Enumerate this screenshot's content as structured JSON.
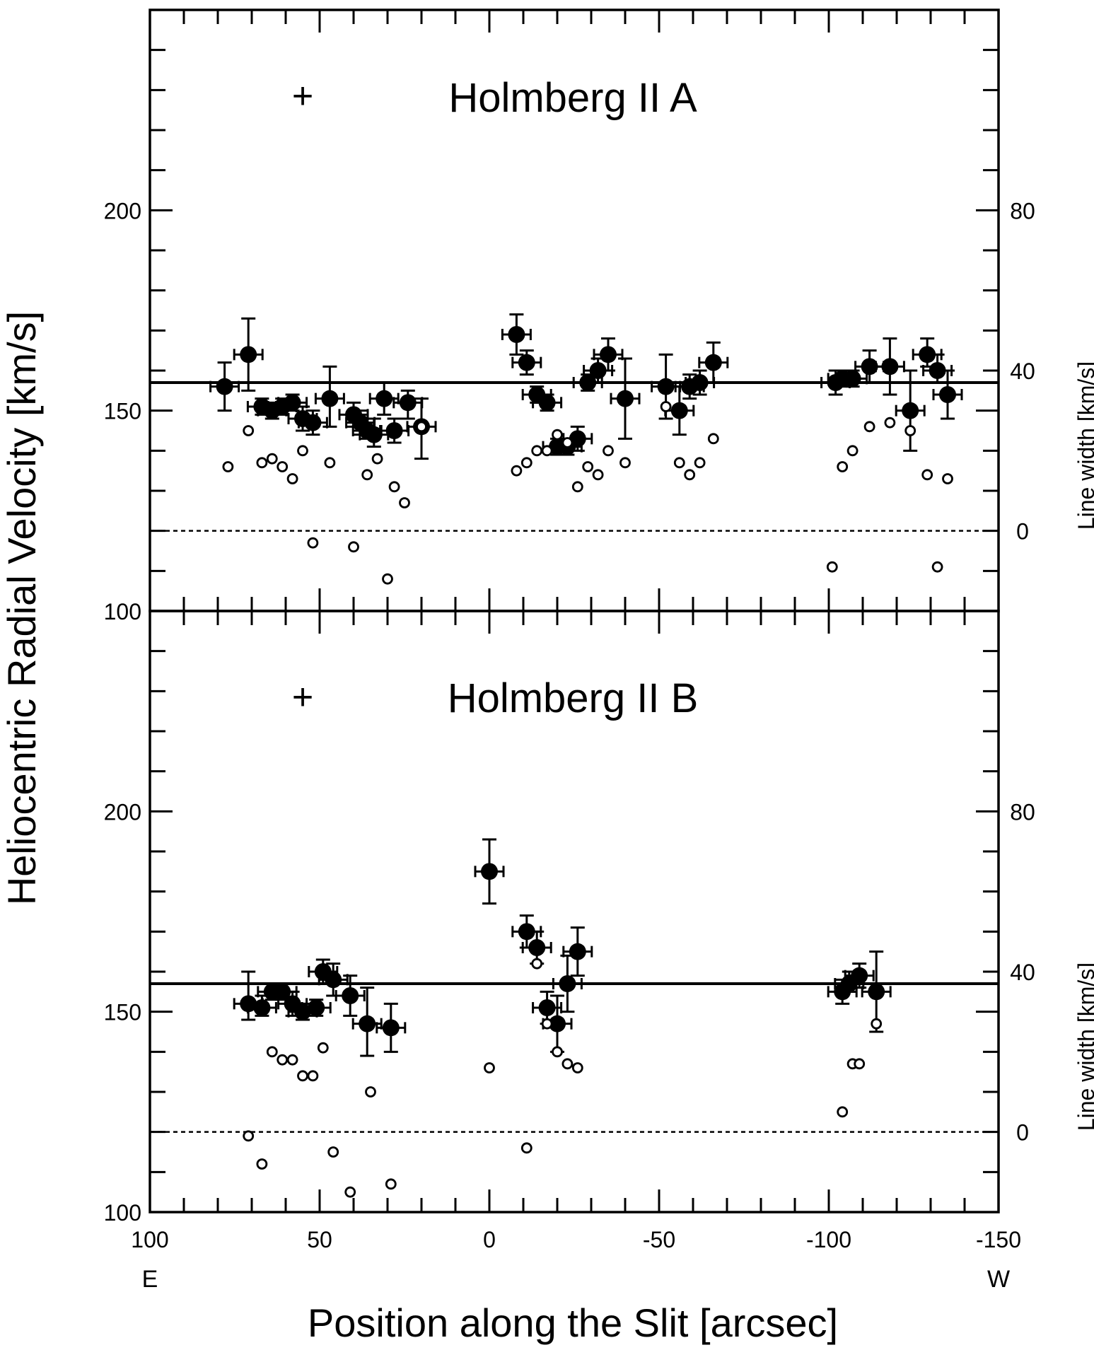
{
  "figure": {
    "y_axis_label": "Heliocentric Radial Velocity [km/s]",
    "x_axis_label": "Position along the Slit [arcsec]",
    "right_axis_label": "Line width [km/s]",
    "x_end_labels": {
      "left": "E",
      "right": "W"
    },
    "center_marker": "+"
  },
  "chart_data": [
    {
      "type": "scatter",
      "title": "Holmberg II A",
      "xlabel": "Position along the Slit [arcsec]",
      "ylabel": "Heliocentric Radial Velocity [km/s]",
      "y2label": "Line width [km/s]",
      "xlim": [
        100,
        -150
      ],
      "ylim": [
        100,
        250
      ],
      "y2_range": [
        -20,
        130
      ],
      "x_ticks": [
        "100",
        "50",
        "0",
        "-50",
        "-100",
        "-150"
      ],
      "y_ticks": [
        "100",
        "150",
        "200"
      ],
      "y2_ticks": [
        "0",
        "40",
        "80"
      ],
      "center_marker_x": 55,
      "mean_velocity": 157,
      "zero_line_width": 0,
      "series": [
        {
          "marker": "filled-circle",
          "points": [
            {
              "x": 78,
              "y": 156,
              "ylo": 150,
              "yhi": 162
            },
            {
              "x": 71,
              "y": 164,
              "ylo": 155,
              "yhi": 173
            },
            {
              "x": 67,
              "y": 151,
              "ylo": 149,
              "yhi": 153
            },
            {
              "x": 64,
              "y": 150,
              "ylo": 148,
              "yhi": 152
            },
            {
              "x": 61,
              "y": 151,
              "ylo": 149,
              "yhi": 153
            },
            {
              "x": 58,
              "y": 152,
              "ylo": 150,
              "yhi": 154
            },
            {
              "x": 55,
              "y": 148,
              "ylo": 145,
              "yhi": 151
            },
            {
              "x": 52,
              "y": 147,
              "ylo": 144,
              "yhi": 150
            },
            {
              "x": 47,
              "y": 153,
              "ylo": 146,
              "yhi": 161
            },
            {
              "x": 40,
              "y": 149,
              "ylo": 146,
              "yhi": 152
            },
            {
              "x": 38,
              "y": 147,
              "ylo": 144,
              "yhi": 150
            },
            {
              "x": 36,
              "y": 145,
              "ylo": 143,
              "yhi": 148
            },
            {
              "x": 34,
              "y": 144,
              "ylo": 141,
              "yhi": 148
            },
            {
              "x": 31,
              "y": 153,
              "ylo": 149,
              "yhi": 157
            },
            {
              "x": 28,
              "y": 145,
              "ylo": 142,
              "yhi": 148
            },
            {
              "x": 24,
              "y": 152,
              "ylo": 148,
              "yhi": 155
            },
            {
              "x": 20,
              "y": 146,
              "ylo": 138,
              "yhi": 153
            },
            {
              "x": -8,
              "y": 169,
              "ylo": 164,
              "yhi": 174
            },
            {
              "x": -11,
              "y": 162,
              "ylo": 159,
              "yhi": 165
            },
            {
              "x": -14,
              "y": 154,
              "ylo": 152,
              "yhi": 156
            },
            {
              "x": -17,
              "y": 152,
              "ylo": 150,
              "yhi": 154
            },
            {
              "x": -20,
              "y": 141,
              "ylo": 139,
              "yhi": 143
            },
            {
              "x": -23,
              "y": 141,
              "ylo": 139,
              "yhi": 143
            },
            {
              "x": -26,
              "y": 143,
              "ylo": 140,
              "yhi": 146
            },
            {
              "x": -29,
              "y": 157,
              "ylo": 155,
              "yhi": 159
            },
            {
              "x": -32,
              "y": 160,
              "ylo": 157,
              "yhi": 163
            },
            {
              "x": -35,
              "y": 164,
              "ylo": 160,
              "yhi": 168
            },
            {
              "x": -40,
              "y": 153,
              "ylo": 143,
              "yhi": 163
            },
            {
              "x": -52,
              "y": 156,
              "ylo": 148,
              "yhi": 164
            },
            {
              "x": -56,
              "y": 150,
              "ylo": 144,
              "yhi": 156
            },
            {
              "x": -59,
              "y": 156,
              "ylo": 153,
              "yhi": 159
            },
            {
              "x": -62,
              "y": 157,
              "ylo": 154,
              "yhi": 160
            },
            {
              "x": -66,
              "y": 162,
              "ylo": 157,
              "yhi": 167
            },
            {
              "x": -102,
              "y": 157,
              "ylo": 154,
              "yhi": 160
            },
            {
              "x": -104,
              "y": 158,
              "ylo": 156,
              "yhi": 160
            },
            {
              "x": -107,
              "y": 158,
              "ylo": 156,
              "yhi": 160
            },
            {
              "x": -112,
              "y": 161,
              "ylo": 157,
              "yhi": 165
            },
            {
              "x": -118,
              "y": 161,
              "ylo": 154,
              "yhi": 168
            },
            {
              "x": -124,
              "y": 150,
              "ylo": 140,
              "yhi": 160
            },
            {
              "x": -129,
              "y": 164,
              "ylo": 161,
              "yhi": 168
            },
            {
              "x": -132,
              "y": 160,
              "ylo": 157,
              "yhi": 164
            },
            {
              "x": -135,
              "y": 154,
              "ylo": 148,
              "yhi": 160
            }
          ]
        },
        {
          "marker": "open-circle",
          "axis": "line width",
          "points": [
            {
              "x": 77,
              "y": 16
            },
            {
              "x": 71,
              "y": 25
            },
            {
              "x": 67,
              "y": 17
            },
            {
              "x": 64,
              "y": 18
            },
            {
              "x": 61,
              "y": 16
            },
            {
              "x": 58,
              "y": 13
            },
            {
              "x": 55,
              "y": 20
            },
            {
              "x": 52,
              "y": -3
            },
            {
              "x": 47,
              "y": 17
            },
            {
              "x": 40,
              "y": -4
            },
            {
              "x": 36,
              "y": 14
            },
            {
              "x": 33,
              "y": 18
            },
            {
              "x": 30,
              "y": -12
            },
            {
              "x": 28,
              "y": 11
            },
            {
              "x": 25,
              "y": 7
            },
            {
              "x": 20,
              "y": 26
            },
            {
              "x": -8,
              "y": 15
            },
            {
              "x": -11,
              "y": 17
            },
            {
              "x": -14,
              "y": 20
            },
            {
              "x": -17,
              "y": 20
            },
            {
              "x": -20,
              "y": 24
            },
            {
              "x": -23,
              "y": 22
            },
            {
              "x": -26,
              "y": 11
            },
            {
              "x": -29,
              "y": 16
            },
            {
              "x": -32,
              "y": 14
            },
            {
              "x": -35,
              "y": 20
            },
            {
              "x": -40,
              "y": 17
            },
            {
              "x": -52,
              "y": 31
            },
            {
              "x": -56,
              "y": 17
            },
            {
              "x": -59,
              "y": 14
            },
            {
              "x": -62,
              "y": 17
            },
            {
              "x": -66,
              "y": 23
            },
            {
              "x": -101,
              "y": -9
            },
            {
              "x": -104,
              "y": 16
            },
            {
              "x": -107,
              "y": 20
            },
            {
              "x": -112,
              "y": 26
            },
            {
              "x": -118,
              "y": 27
            },
            {
              "x": -124,
              "y": 25
            },
            {
              "x": -129,
              "y": 14
            },
            {
              "x": -132,
              "y": -9
            },
            {
              "x": -135,
              "y": 13
            }
          ]
        }
      ]
    },
    {
      "type": "scatter",
      "title": "Holmberg II B",
      "xlabel": "Position along the Slit [arcsec]",
      "ylabel": "Heliocentric Radial Velocity [km/s]",
      "y2label": "Line width [km/s]",
      "xlim": [
        100,
        -150
      ],
      "ylim": [
        100,
        250
      ],
      "y2_range": [
        -20,
        130
      ],
      "x_ticks": [
        "100",
        "50",
        "0",
        "-50",
        "-100",
        "-150"
      ],
      "y_ticks": [
        "100",
        "150",
        "200"
      ],
      "y2_ticks": [
        "0",
        "40",
        "80"
      ],
      "center_marker_x": 55,
      "mean_velocity": 157,
      "zero_line_width": 0,
      "series": [
        {
          "marker": "filled-circle",
          "points": [
            {
              "x": 71,
              "y": 152,
              "ylo": 148,
              "yhi": 160
            },
            {
              "x": 67,
              "y": 151,
              "ylo": 149,
              "yhi": 154
            },
            {
              "x": 64,
              "y": 155,
              "ylo": 153,
              "yhi": 157
            },
            {
              "x": 61,
              "y": 155,
              "ylo": 153,
              "yhi": 157
            },
            {
              "x": 58,
              "y": 152,
              "ylo": 149,
              "yhi": 155
            },
            {
              "x": 55,
              "y": 150,
              "ylo": 148,
              "yhi": 152
            },
            {
              "x": 51,
              "y": 151,
              "ylo": 149,
              "yhi": 153
            },
            {
              "x": 49,
              "y": 160,
              "ylo": 157,
              "yhi": 163
            },
            {
              "x": 46,
              "y": 158,
              "ylo": 154,
              "yhi": 162
            },
            {
              "x": 41,
              "y": 154,
              "ylo": 149,
              "yhi": 159
            },
            {
              "x": 36,
              "y": 147,
              "ylo": 139,
              "yhi": 156
            },
            {
              "x": 29,
              "y": 146,
              "ylo": 140,
              "yhi": 152
            },
            {
              "x": 0,
              "y": 185,
              "ylo": 177,
              "yhi": 193
            },
            {
              "x": -11,
              "y": 170,
              "ylo": 166,
              "yhi": 174
            },
            {
              "x": -14,
              "y": 166,
              "ylo": 162,
              "yhi": 170
            },
            {
              "x": -17,
              "y": 151,
              "ylo": 147,
              "yhi": 155
            },
            {
              "x": -20,
              "y": 147,
              "ylo": 140,
              "yhi": 154
            },
            {
              "x": -23,
              "y": 157,
              "ylo": 150,
              "yhi": 164
            },
            {
              "x": -26,
              "y": 165,
              "ylo": 159,
              "yhi": 171
            },
            {
              "x": -104,
              "y": 155,
              "ylo": 152,
              "yhi": 158
            },
            {
              "x": -106,
              "y": 157,
              "ylo": 155,
              "yhi": 160
            },
            {
              "x": -109,
              "y": 159,
              "ylo": 156,
              "yhi": 162
            },
            {
              "x": -114,
              "y": 155,
              "ylo": 145,
              "yhi": 165
            }
          ]
        },
        {
          "marker": "open-circle",
          "axis": "line width",
          "points": [
            {
              "x": 71,
              "y": -1
            },
            {
              "x": 67,
              "y": -8
            },
            {
              "x": 64,
              "y": 20
            },
            {
              "x": 61,
              "y": 18
            },
            {
              "x": 58,
              "y": 18
            },
            {
              "x": 55,
              "y": 14
            },
            {
              "x": 52,
              "y": 14
            },
            {
              "x": 49,
              "y": 21
            },
            {
              "x": 46,
              "y": -5
            },
            {
              "x": 41,
              "y": -15
            },
            {
              "x": 35,
              "y": 10
            },
            {
              "x": 29,
              "y": -13
            },
            {
              "x": 0,
              "y": 16
            },
            {
              "x": -11,
              "y": -4
            },
            {
              "x": -14,
              "y": 42
            },
            {
              "x": -17,
              "y": 27
            },
            {
              "x": -20,
              "y": 20
            },
            {
              "x": -23,
              "y": 17
            },
            {
              "x": -26,
              "y": 16
            },
            {
              "x": -104,
              "y": 5
            },
            {
              "x": -107,
              "y": 17
            },
            {
              "x": -109,
              "y": 17
            },
            {
              "x": -114,
              "y": 27
            }
          ]
        }
      ]
    }
  ]
}
